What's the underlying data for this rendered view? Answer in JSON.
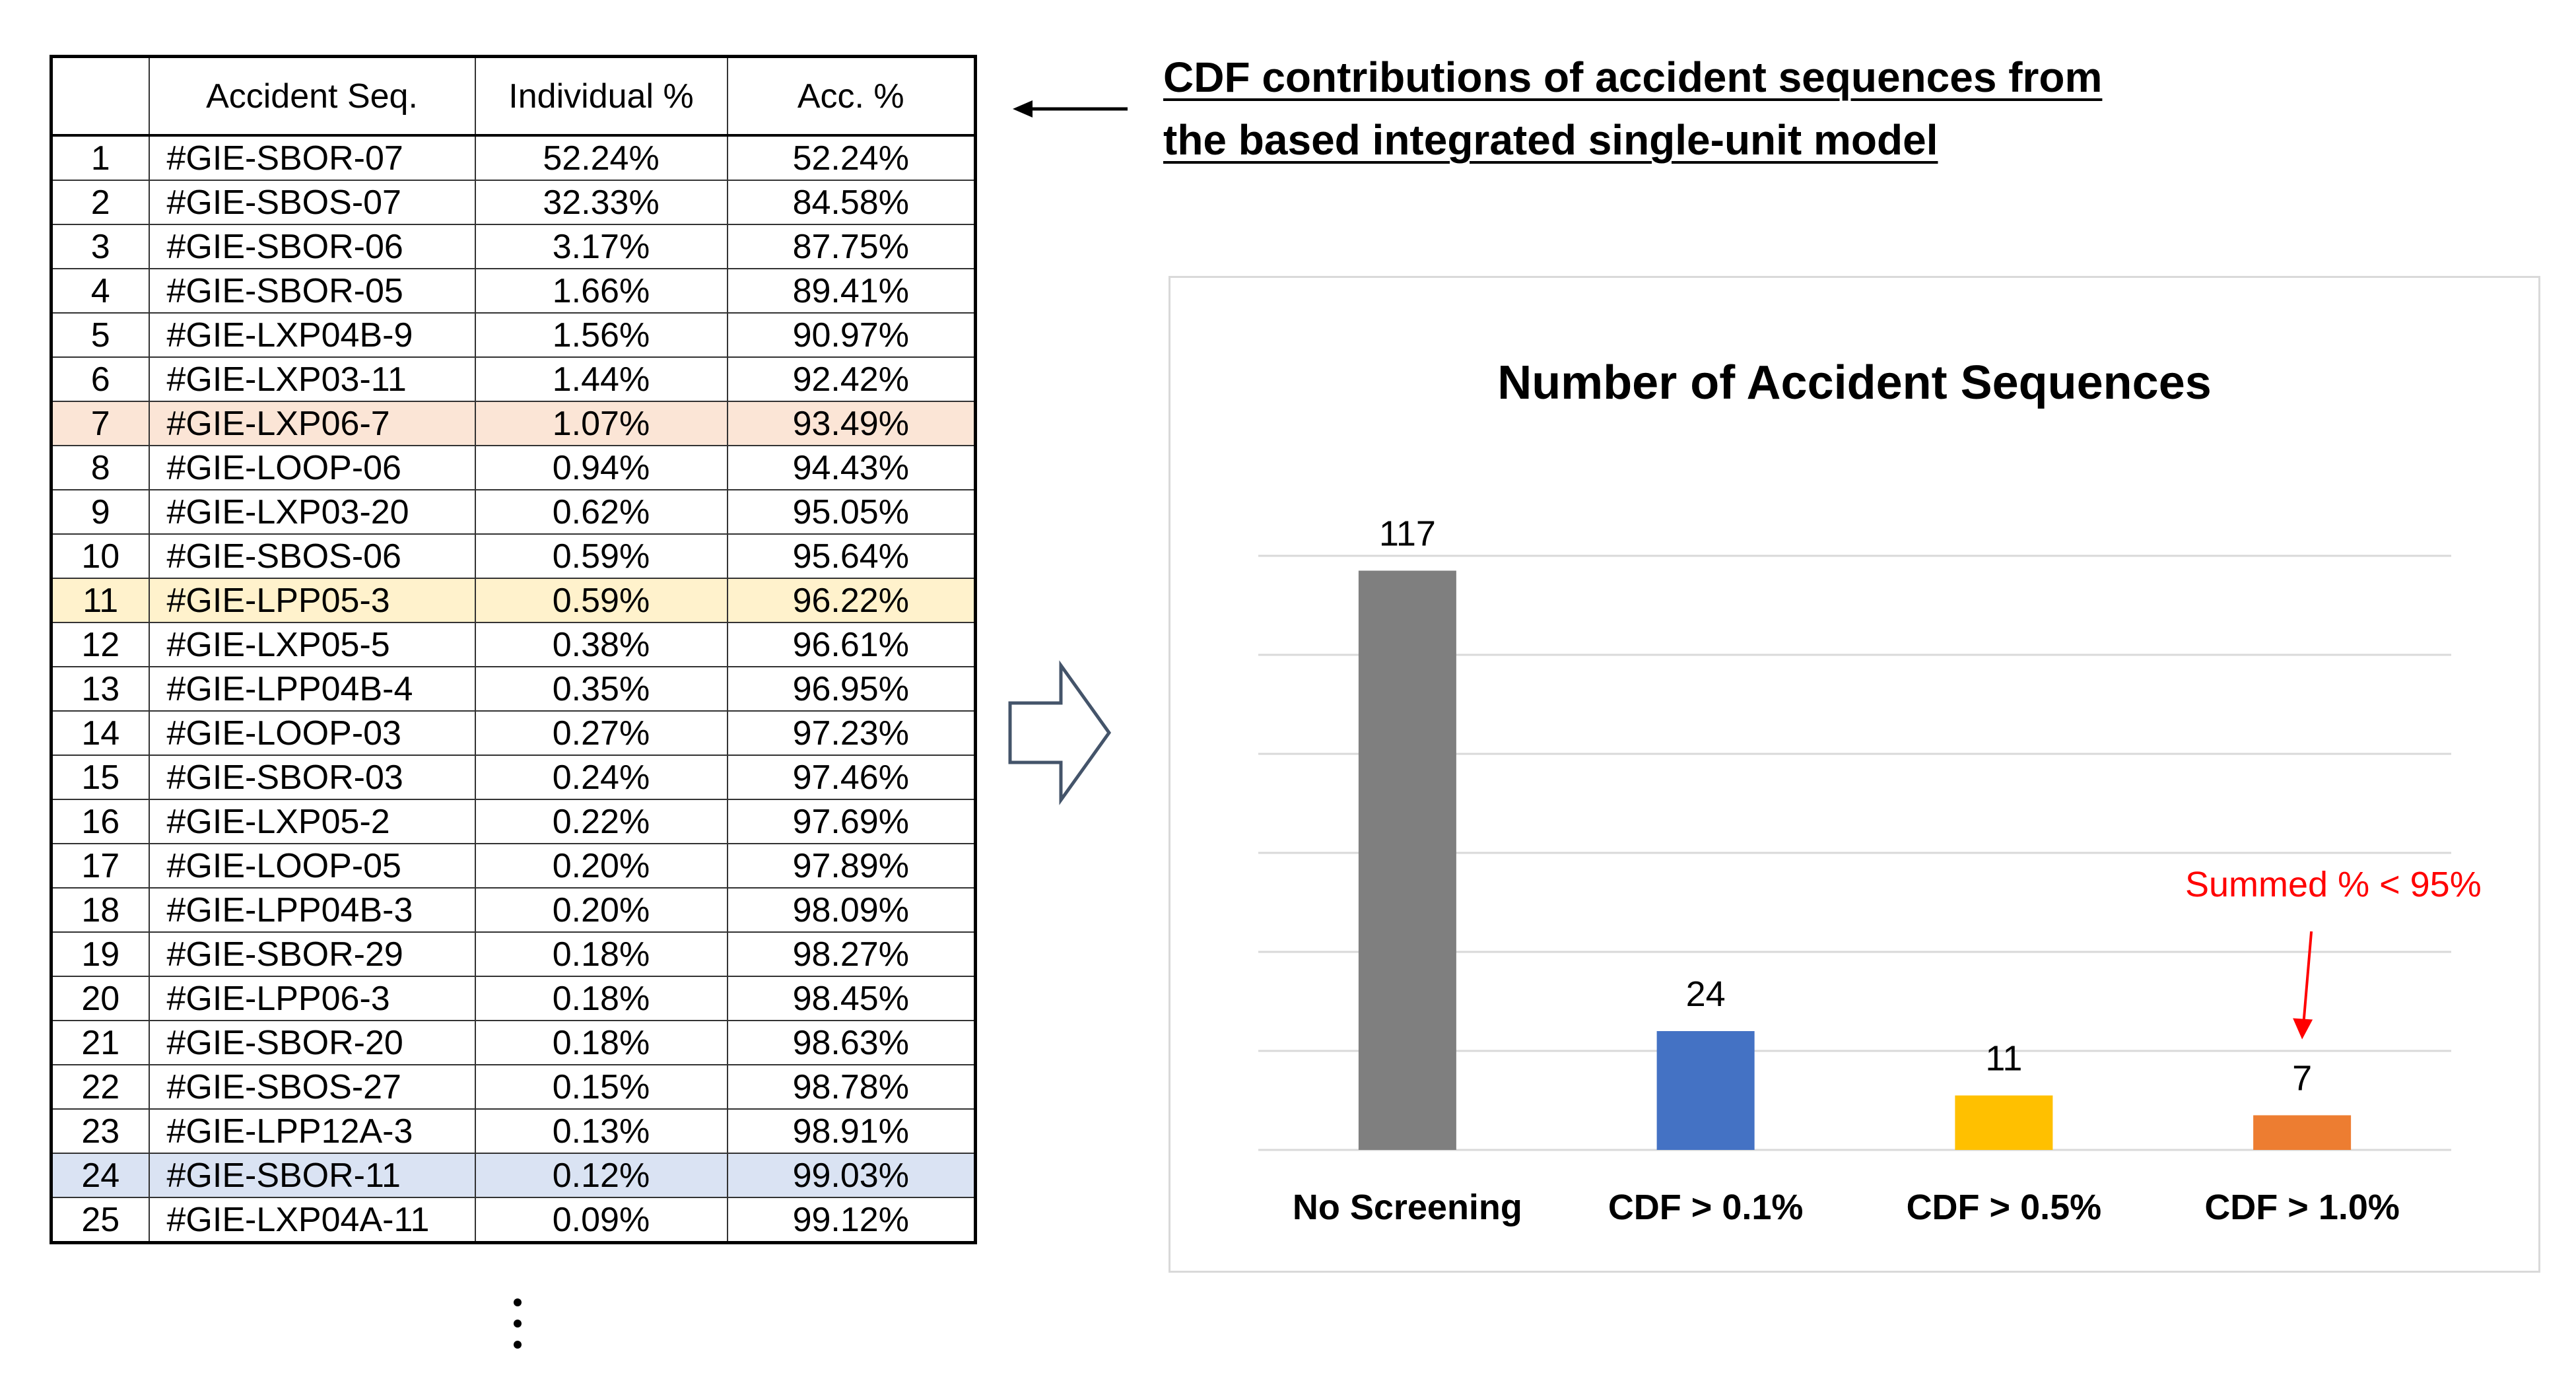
{
  "table": {
    "headers": [
      "",
      "Accident Seq.",
      "Individual %",
      "Acc. %"
    ],
    "rows": [
      {
        "no": "1",
        "seq": "#GIE-SBOR-07",
        "ind": "52.24%",
        "acc": "52.24%",
        "hl": ""
      },
      {
        "no": "2",
        "seq": "#GIE-SBOS-07",
        "ind": "32.33%",
        "acc": "84.58%",
        "hl": ""
      },
      {
        "no": "3",
        "seq": "#GIE-SBOR-06",
        "ind": "3.17%",
        "acc": "87.75%",
        "hl": ""
      },
      {
        "no": "4",
        "seq": "#GIE-SBOR-05",
        "ind": "1.66%",
        "acc": "89.41%",
        "hl": ""
      },
      {
        "no": "5",
        "seq": "#GIE-LXP04B-9",
        "ind": "1.56%",
        "acc": "90.97%",
        "hl": ""
      },
      {
        "no": "6",
        "seq": "#GIE-LXP03-11",
        "ind": "1.44%",
        "acc": "92.42%",
        "hl": ""
      },
      {
        "no": "7",
        "seq": "#GIE-LXP06-7",
        "ind": "1.07%",
        "acc": "93.49%",
        "hl": "orange"
      },
      {
        "no": "8",
        "seq": "#GIE-LOOP-06",
        "ind": "0.94%",
        "acc": "94.43%",
        "hl": ""
      },
      {
        "no": "9",
        "seq": "#GIE-LXP03-20",
        "ind": "0.62%",
        "acc": "95.05%",
        "hl": ""
      },
      {
        "no": "10",
        "seq": "#GIE-SBOS-06",
        "ind": "0.59%",
        "acc": "95.64%",
        "hl": ""
      },
      {
        "no": "11",
        "seq": "#GIE-LPP05-3",
        "ind": "0.59%",
        "acc": "96.22%",
        "hl": "yellow"
      },
      {
        "no": "12",
        "seq": "#GIE-LXP05-5",
        "ind": "0.38%",
        "acc": "96.61%",
        "hl": ""
      },
      {
        "no": "13",
        "seq": "#GIE-LPP04B-4",
        "ind": "0.35%",
        "acc": "96.95%",
        "hl": ""
      },
      {
        "no": "14",
        "seq": "#GIE-LOOP-03",
        "ind": "0.27%",
        "acc": "97.23%",
        "hl": ""
      },
      {
        "no": "15",
        "seq": "#GIE-SBOR-03",
        "ind": "0.24%",
        "acc": "97.46%",
        "hl": ""
      },
      {
        "no": "16",
        "seq": "#GIE-LXP05-2",
        "ind": "0.22%",
        "acc": "97.69%",
        "hl": ""
      },
      {
        "no": "17",
        "seq": "#GIE-LOOP-05",
        "ind": "0.20%",
        "acc": "97.89%",
        "hl": ""
      },
      {
        "no": "18",
        "seq": "#GIE-LPP04B-3",
        "ind": "0.20%",
        "acc": "98.09%",
        "hl": ""
      },
      {
        "no": "19",
        "seq": "#GIE-SBOR-29",
        "ind": "0.18%",
        "acc": "98.27%",
        "hl": ""
      },
      {
        "no": "20",
        "seq": "#GIE-LPP06-3",
        "ind": "0.18%",
        "acc": "98.45%",
        "hl": ""
      },
      {
        "no": "21",
        "seq": "#GIE-SBOR-20",
        "ind": "0.18%",
        "acc": "98.63%",
        "hl": ""
      },
      {
        "no": "22",
        "seq": "#GIE-SBOS-27",
        "ind": "0.15%",
        "acc": "98.78%",
        "hl": ""
      },
      {
        "no": "23",
        "seq": "#GIE-LPP12A-3",
        "ind": "0.13%",
        "acc": "98.91%",
        "hl": ""
      },
      {
        "no": "24",
        "seq": "#GIE-SBOR-11",
        "ind": "0.12%",
        "acc": "99.03%",
        "hl": "blue"
      },
      {
        "no": "25",
        "seq": "#GIE-LXP04A-11",
        "ind": "0.09%",
        "acc": "99.12%",
        "hl": ""
      }
    ]
  },
  "caption": {
    "line1": "CDF contributions of accident sequences from",
    "line2": "the based integrated single-unit model"
  },
  "colors": {
    "gray": "#7f7f7f",
    "blue": "#4472c4",
    "yellow": "#ffc000",
    "orange": "#ed7d31",
    "annotation": "#ff0000",
    "highlight_orange": "#fbe5d6",
    "highlight_yellow": "#fff2cc",
    "highlight_blue": "#dae3f3"
  },
  "chart_data": {
    "type": "bar",
    "title": "Number of Accident Sequences",
    "categories": [
      "No Screening",
      "CDF > 0.1%",
      "CDF > 0.5%",
      "CDF > 1.0%"
    ],
    "values": [
      117,
      24,
      11,
      7
    ],
    "value_labels": [
      "117",
      "24",
      "11",
      "7"
    ],
    "bar_colors": [
      "#7f7f7f",
      "#4472c4",
      "#ffc000",
      "#ed7d31"
    ],
    "ylim": [
      0,
      120
    ],
    "grid": true,
    "annotation": {
      "text": "Summed % < 95%",
      "target_category": "CDF > 1.0%"
    }
  }
}
